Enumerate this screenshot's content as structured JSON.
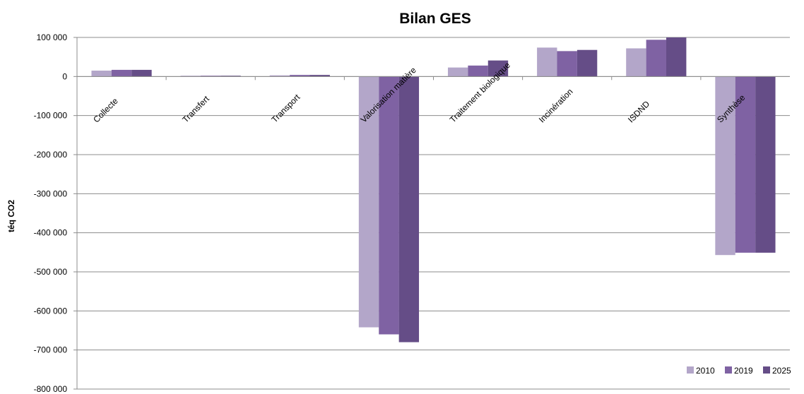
{
  "chart_data": {
    "type": "bar",
    "title": "Bilan GES",
    "ylabel": "téq CO2",
    "xlabel": "",
    "ylim": [
      -800000,
      100000
    ],
    "yticks": [
      100000,
      0,
      -100000,
      -200000,
      -300000,
      -400000,
      -500000,
      -600000,
      -700000,
      -800000
    ],
    "ytick_labels": [
      "100 000",
      "0",
      "-100 000",
      "-200 000",
      "-300 000",
      "-400 000",
      "-500 000",
      "-600 000",
      "-700 000",
      "-800 000"
    ],
    "categories": [
      "Collecte",
      "Transfert",
      "Transport",
      "Valorisation matière",
      "Traitement biologique",
      "Incinération",
      "ISDND",
      "Synthèse"
    ],
    "series": [
      {
        "name": "2010",
        "color": "#b3a6c9",
        "values": [
          15000,
          2000,
          3000,
          -642000,
          23000,
          74000,
          72000,
          -457000
        ]
      },
      {
        "name": "2019",
        "color": "#7f62a3",
        "values": [
          17000,
          2000,
          4000,
          -660000,
          28000,
          65000,
          94000,
          -451000
        ]
      },
      {
        "name": "2025",
        "color": "#654d87",
        "values": [
          17000,
          2000,
          4000,
          -680000,
          41000,
          68000,
          100000,
          -451000
        ]
      }
    ],
    "grid": true,
    "legend_position": "bottom-right"
  }
}
